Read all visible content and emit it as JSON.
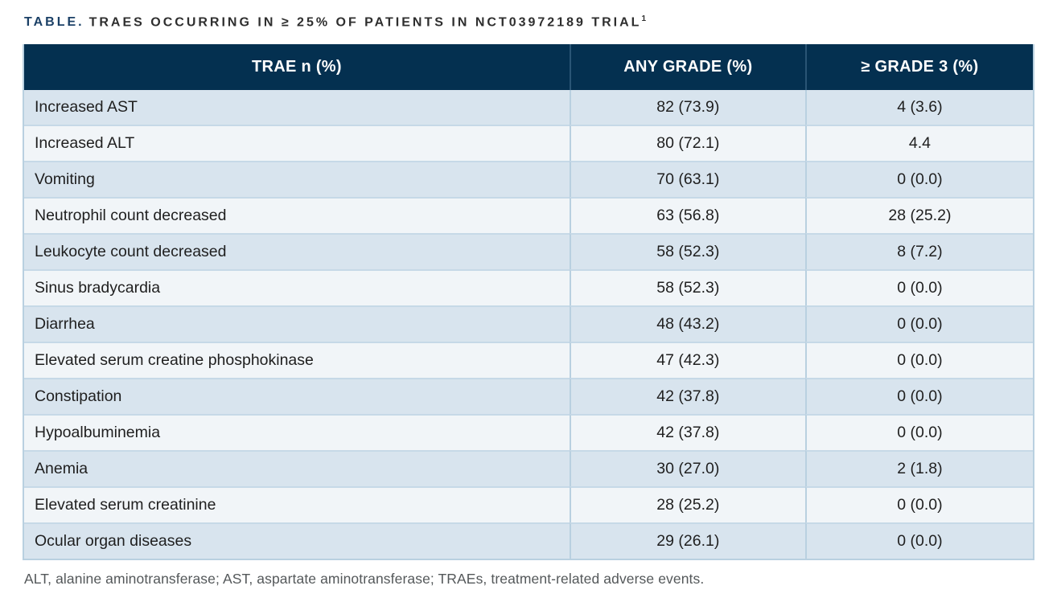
{
  "title": {
    "label": "TABLE.",
    "text": "TRAES OCCURRING IN ≥ 25% OF PATIENTS IN NCT03972189 TRIAL",
    "superscript": "1"
  },
  "table": {
    "columns": [
      "TRAE n (%)",
      "ANY GRADE (%)",
      "≥ GRADE 3 (%)"
    ],
    "rows": [
      [
        "Increased AST",
        "82 (73.9)",
        "4 (3.6)"
      ],
      [
        "Increased ALT",
        "80 (72.1)",
        "4.4"
      ],
      [
        "Vomiting",
        "70 (63.1)",
        "0 (0.0)"
      ],
      [
        "Neutrophil count decreased",
        "63 (56.8)",
        "28 (25.2)"
      ],
      [
        "Leukocyte count decreased",
        "58 (52.3)",
        "8 (7.2)"
      ],
      [
        "Sinus bradycardia",
        "58 (52.3)",
        "0 (0.0)"
      ],
      [
        "Diarrhea",
        "48 (43.2)",
        "0 (0.0)"
      ],
      [
        "Elevated serum creatine phosphokinase",
        "47 (42.3)",
        "0 (0.0)"
      ],
      [
        "Constipation",
        "42 (37.8)",
        "0 (0.0)"
      ],
      [
        "Hypoalbuminemia",
        "42 (37.8)",
        "0 (0.0)"
      ],
      [
        "Anemia",
        "30 (27.0)",
        "2 (1.8)"
      ],
      [
        "Elevated serum creatinine",
        "28 (25.2)",
        "0 (0.0)"
      ],
      [
        "Ocular organ diseases",
        "29 (26.1)",
        "0 (0.0)"
      ]
    ]
  },
  "footnote": "ALT, alanine aminotransferase; AST, aspartate aminotransferase; TRAEs, treatment-related adverse events.",
  "colors": {
    "header_bg": "#043050",
    "header_text": "#ffffff",
    "row_shaded": "#d8e4ee",
    "row_light": "#f1f5f8",
    "title_accent": "#1b4066",
    "border": "#b9d0e0"
  }
}
